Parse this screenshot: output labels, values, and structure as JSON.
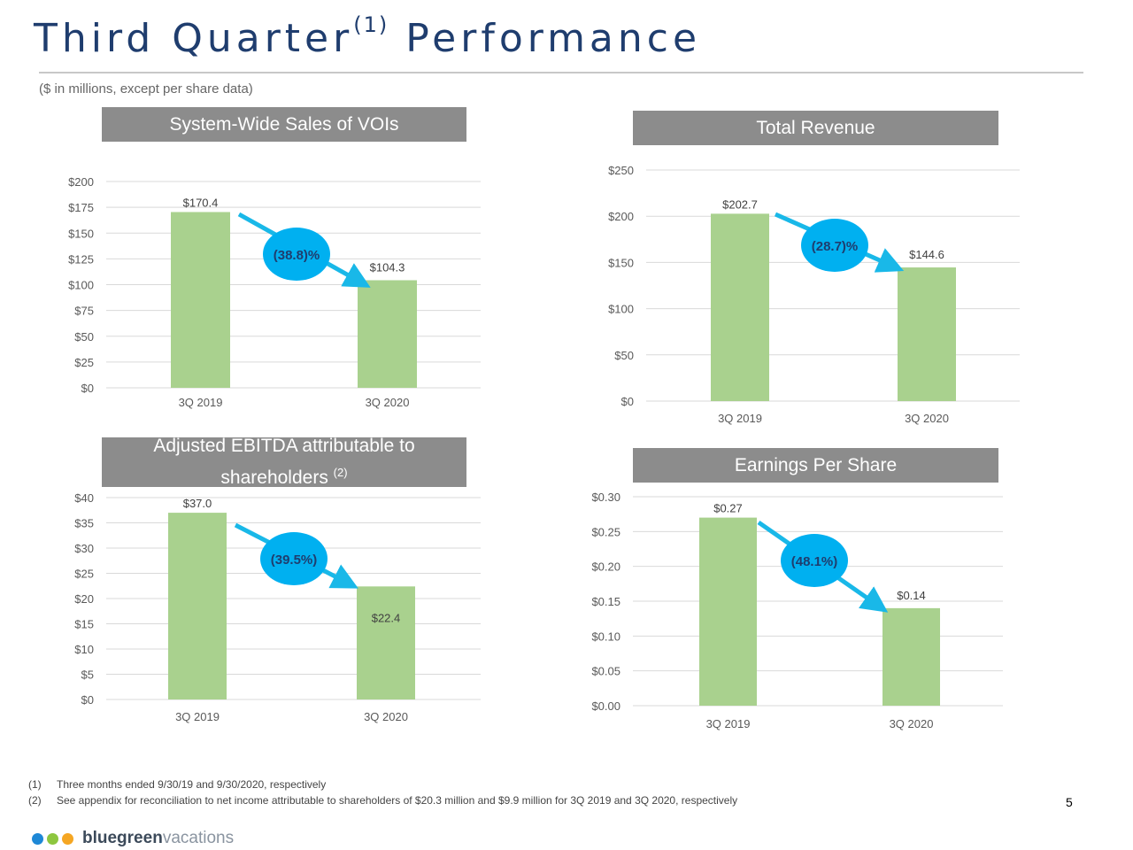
{
  "header": {
    "title": "Third Quarter",
    "title_sup": "(1)",
    "title_end": "Performance",
    "subtitle": "($ in millions, except per share data)"
  },
  "colors": {
    "bar": "#a9d18e",
    "bubble": "#00b0f0",
    "arrow": "#19b8e8",
    "title": "#1f3d6e",
    "header_bg": "#8c8c8c"
  },
  "chart_data": [
    {
      "type": "bar",
      "title": "System-Wide Sales of  VOIs",
      "title_sup": "",
      "categories": [
        "3Q 2019",
        "3Q 2020"
      ],
      "values": [
        170.4,
        104.3
      ],
      "data_labels": [
        "$170.4",
        "$104.3"
      ],
      "ylim": [
        0,
        200
      ],
      "yticks": [
        "$0",
        "$25",
        "$50",
        "$75",
        "$100",
        "$125",
        "$150",
        "$175",
        "$200"
      ],
      "change_label": "(38.8)%",
      "grid": true
    },
    {
      "type": "bar",
      "title": "Total Revenue",
      "title_sup": "",
      "categories": [
        "3Q 2019",
        "3Q 2020"
      ],
      "values": [
        202.7,
        144.6
      ],
      "data_labels": [
        "$202.7",
        "$144.6"
      ],
      "ylim": [
        0,
        250
      ],
      "yticks": [
        "$0",
        "$50",
        "$100",
        "$150",
        "$200",
        "$250"
      ],
      "change_label": "(28.7)%",
      "grid": true
    },
    {
      "type": "bar",
      "title": "Adjusted EBITDA attributable to shareholders",
      "title_sup": "(2)",
      "categories": [
        "3Q 2019",
        "3Q 2020"
      ],
      "values": [
        37.0,
        22.4
      ],
      "data_labels": [
        "$37.0",
        "$22.4"
      ],
      "ylim": [
        0,
        40
      ],
      "yticks": [
        "$0",
        "$5",
        "$10",
        "$15",
        "$20",
        "$25",
        "$30",
        "$35",
        "$40"
      ],
      "change_label": "(39.5%)",
      "grid": true
    },
    {
      "type": "bar",
      "title": "Earnings Per Share",
      "title_sup": "",
      "categories": [
        "3Q 2019",
        "3Q 2020"
      ],
      "values": [
        0.27,
        0.14
      ],
      "data_labels": [
        "$0.27",
        "$0.14"
      ],
      "ylim": [
        0,
        0.3
      ],
      "yticks": [
        "$0.00",
        "$0.05",
        "$0.10",
        "$0.15",
        "$0.20",
        "$0.25",
        "$0.30"
      ],
      "change_label": "(48.1%)",
      "grid": true
    }
  ],
  "footnotes": [
    {
      "num": "(1)",
      "text": "Three months ended 9/30/19 and 9/30/2020, respectively"
    },
    {
      "num": "(2)",
      "text": "See appendix for reconciliation to net income attributable to shareholders of $20.3 million and $9.9 million for 3Q 2019 and 3Q 2020, respectively"
    }
  ],
  "page_number": "5",
  "logo": {
    "bold": "bluegreen",
    "light": "vacations",
    "dot_colors": [
      "#1e88d6",
      "#8dc63f",
      "#f5a623"
    ]
  }
}
